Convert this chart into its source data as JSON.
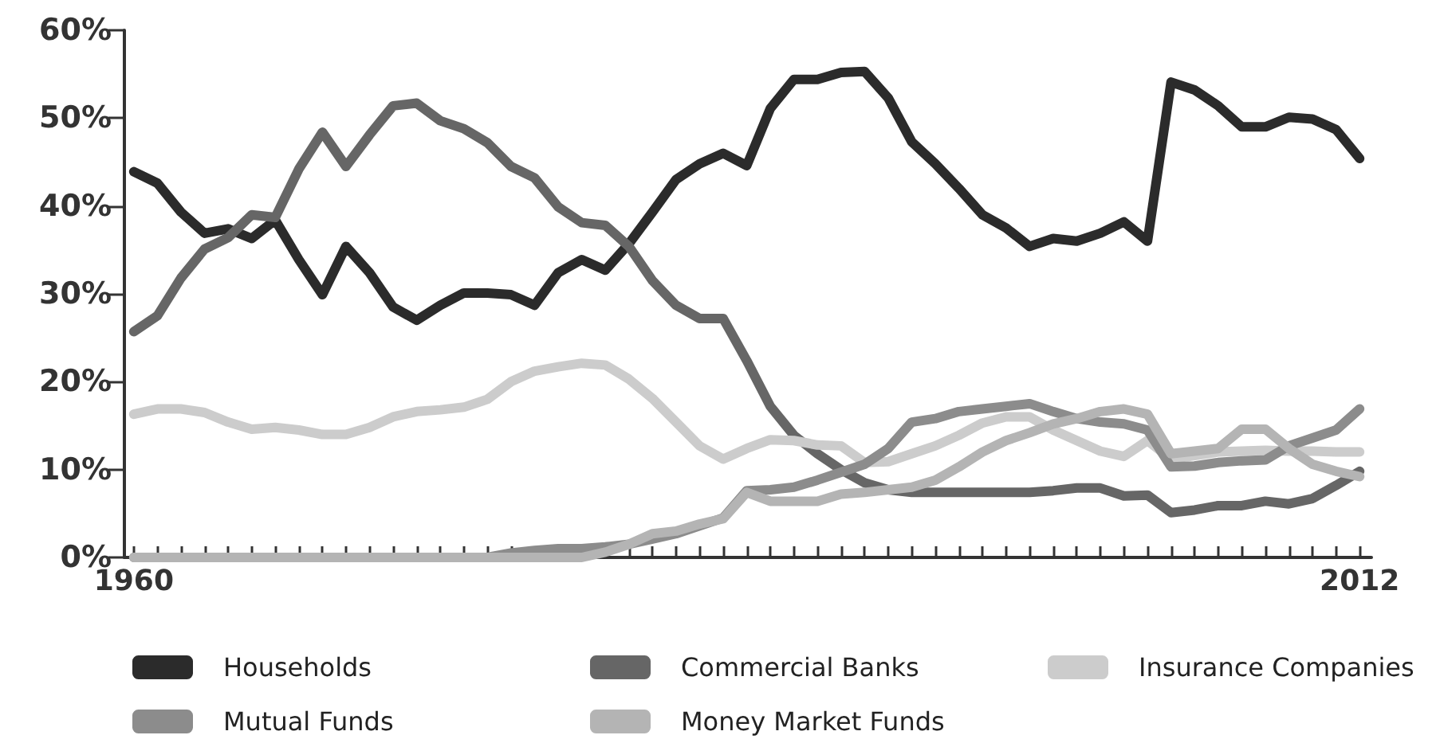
{
  "chart_data": {
    "type": "line",
    "x": [
      1960,
      1961,
      1962,
      1963,
      1964,
      1965,
      1966,
      1967,
      1968,
      1969,
      1970,
      1971,
      1972,
      1973,
      1974,
      1975,
      1976,
      1977,
      1978,
      1979,
      1980,
      1981,
      1982,
      1983,
      1984,
      1985,
      1986,
      1987,
      1988,
      1989,
      1990,
      1991,
      1992,
      1993,
      1994,
      1995,
      1996,
      1997,
      1998,
      1999,
      2000,
      2001,
      2002,
      2003,
      2004,
      2005,
      2006,
      2007,
      2008,
      2009,
      2010,
      2011,
      2012
    ],
    "series": [
      {
        "name": "Households",
        "color": "#2b2b2b",
        "values": [
          43.9,
          42.6,
          39.3,
          36.9,
          37.4,
          36.3,
          38.4,
          33.9,
          29.9,
          35.4,
          32.4,
          28.5,
          27.0,
          28.7,
          30.1,
          30.1,
          29.9,
          28.7,
          32.4,
          33.9,
          32.7,
          35.7,
          39.3,
          43.0,
          44.8,
          46.0,
          44.6,
          51.1,
          54.4,
          54.4,
          55.2,
          55.3,
          52.3,
          47.3,
          44.8,
          42.0,
          39.0,
          37.5,
          35.4,
          36.3,
          36.0,
          36.9,
          38.2,
          36.0,
          54.1,
          53.2,
          51.4,
          49.0,
          49.0,
          50.1,
          49.9,
          48.7,
          45.4
        ]
      },
      {
        "name": "Commercial Banks",
        "color": "#666666",
        "values": [
          25.7,
          27.5,
          31.8,
          35.1,
          36.4,
          39.0,
          38.7,
          44.2,
          48.4,
          44.5,
          48.1,
          51.4,
          51.7,
          49.7,
          48.8,
          47.2,
          44.5,
          43.2,
          39.9,
          38.1,
          37.8,
          35.4,
          31.5,
          28.7,
          27.2,
          27.2,
          22.4,
          17.2,
          13.9,
          11.8,
          10.0,
          8.5,
          7.7,
          7.4,
          7.4,
          7.4,
          7.4,
          7.4,
          7.4,
          7.6,
          7.9,
          7.9,
          7.0,
          7.1,
          5.1,
          5.4,
          5.9,
          5.9,
          6.4,
          6.1,
          6.7,
          8.2,
          9.8
        ]
      },
      {
        "name": "Insurance Companies",
        "color": "#cccccc",
        "values": [
          16.3,
          16.9,
          16.9,
          16.5,
          15.4,
          14.6,
          14.8,
          14.5,
          14.0,
          14.0,
          14.8,
          16.0,
          16.6,
          16.8,
          17.1,
          18.0,
          20.0,
          21.2,
          21.7,
          22.1,
          21.9,
          20.3,
          18.1,
          15.4,
          12.7,
          11.2,
          12.4,
          13.4,
          13.3,
          12.8,
          12.7,
          10.8,
          10.9,
          11.8,
          12.7,
          13.9,
          15.3,
          16.0,
          16.0,
          14.5,
          13.3,
          12.1,
          11.5,
          13.3,
          11.2,
          11.6,
          12.0,
          12.1,
          12.2,
          12.1,
          12.1,
          12.0,
          12.0
        ]
      },
      {
        "name": "Mutual Funds",
        "color": "#8c8c8c",
        "values": [
          0,
          0,
          0,
          0,
          0,
          0,
          0,
          0,
          0,
          0,
          0,
          0,
          0,
          0,
          0,
          0,
          0.5,
          0.8,
          1.0,
          1.0,
          1.2,
          1.5,
          2.1,
          2.7,
          3.6,
          4.5,
          7.6,
          7.7,
          8.0,
          8.8,
          9.7,
          10.6,
          12.4,
          15.4,
          15.8,
          16.6,
          16.9,
          17.2,
          17.5,
          16.6,
          15.8,
          15.4,
          15.2,
          14.5,
          10.3,
          10.4,
          10.8,
          11.0,
          11.1,
          12.7,
          13.6,
          14.5,
          16.9
        ]
      },
      {
        "name": "Money Market Funds",
        "color": "#b4b4b4",
        "values": [
          0,
          0,
          0,
          0,
          0,
          0,
          0,
          0,
          0,
          0,
          0,
          0,
          0,
          0,
          0,
          0,
          0,
          0,
          0,
          0,
          0.6,
          1.5,
          2.7,
          3.0,
          3.8,
          4.4,
          7.4,
          6.4,
          6.4,
          6.4,
          7.2,
          7.4,
          7.7,
          8.0,
          8.8,
          10.3,
          12.0,
          13.3,
          14.2,
          15.2,
          15.8,
          16.6,
          16.9,
          16.3,
          11.8,
          12.1,
          12.4,
          14.6,
          14.6,
          12.4,
          10.6,
          9.8,
          9.2
        ]
      }
    ],
    "xlim": [
      1959.6,
      2012.5
    ],
    "xticks": [
      {
        "value": 1960,
        "label": "1960"
      },
      {
        "value": 1961,
        "label": null
      },
      {
        "value": 1962,
        "label": null
      },
      {
        "value": 1963,
        "label": null
      },
      {
        "value": 1964,
        "label": null
      },
      {
        "value": 1965,
        "label": null
      },
      {
        "value": 1966,
        "label": null
      },
      {
        "value": 1967,
        "label": null
      },
      {
        "value": 1968,
        "label": null
      },
      {
        "value": 1969,
        "label": null
      },
      {
        "value": 1970,
        "label": null
      },
      {
        "value": 1971,
        "label": null
      },
      {
        "value": 1972,
        "label": null
      },
      {
        "value": 1973,
        "label": null
      },
      {
        "value": 1974,
        "label": null
      },
      {
        "value": 1975,
        "label": null
      },
      {
        "value": 1976,
        "label": null
      },
      {
        "value": 1977,
        "label": null
      },
      {
        "value": 1978,
        "label": null
      },
      {
        "value": 1979,
        "label": null
      },
      {
        "value": 1980,
        "label": null
      },
      {
        "value": 1981,
        "label": null
      },
      {
        "value": 1982,
        "label": null
      },
      {
        "value": 1983,
        "label": null
      },
      {
        "value": 1984,
        "label": null
      },
      {
        "value": 1985,
        "label": null
      },
      {
        "value": 1986,
        "label": null
      },
      {
        "value": 1987,
        "label": null
      },
      {
        "value": 1988,
        "label": null
      },
      {
        "value": 1989,
        "label": null
      },
      {
        "value": 1990,
        "label": null
      },
      {
        "value": 1991,
        "label": null
      },
      {
        "value": 1992,
        "label": null
      },
      {
        "value": 1993,
        "label": null
      },
      {
        "value": 1994,
        "label": null
      },
      {
        "value": 1995,
        "label": null
      },
      {
        "value": 1996,
        "label": null
      },
      {
        "value": 1997,
        "label": null
      },
      {
        "value": 1998,
        "label": null
      },
      {
        "value": 1999,
        "label": null
      },
      {
        "value": 2000,
        "label": null
      },
      {
        "value": 2001,
        "label": null
      },
      {
        "value": 2002,
        "label": null
      },
      {
        "value": 2003,
        "label": null
      },
      {
        "value": 2004,
        "label": null
      },
      {
        "value": 2005,
        "label": null
      },
      {
        "value": 2006,
        "label": null
      },
      {
        "value": 2007,
        "label": null
      },
      {
        "value": 2008,
        "label": null
      },
      {
        "value": 2009,
        "label": null
      },
      {
        "value": 2010,
        "label": null
      },
      {
        "value": 2011,
        "label": null
      },
      {
        "value": 2012,
        "label": "2012"
      }
    ],
    "ylim": [
      0,
      60
    ],
    "yticks": [
      {
        "value": 0,
        "label": "0%"
      },
      {
        "value": 10,
        "label": "10%"
      },
      {
        "value": 20,
        "label": "20%"
      },
      {
        "value": 30,
        "label": "30%"
      },
      {
        "value": 40,
        "label": "40%"
      },
      {
        "value": 50,
        "label": "50%"
      },
      {
        "value": 60,
        "label": "60%"
      }
    ],
    "grid": false,
    "legend": "bottom"
  }
}
